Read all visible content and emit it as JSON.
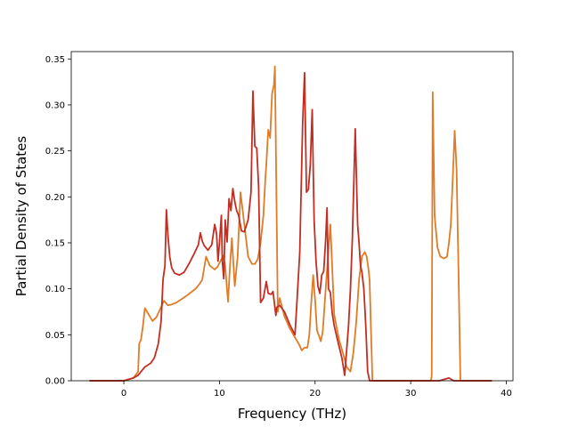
{
  "chart_data": {
    "type": "line",
    "title": "",
    "xlabel": "Frequency (THz)",
    "ylabel": "Partial Density of States",
    "xlim": [
      -5.5,
      40.7
    ],
    "ylim": [
      0.0,
      0.358
    ],
    "xticks": [
      0,
      10,
      20,
      30,
      40
    ],
    "yticks": [
      0.0,
      0.05,
      0.1,
      0.15,
      0.2,
      0.25,
      0.3,
      0.35
    ],
    "xtick_labels": [
      "0",
      "10",
      "20",
      "30",
      "40"
    ],
    "ytick_labels": [
      "0.00",
      "0.05",
      "0.10",
      "0.15",
      "0.20",
      "0.25",
      "0.30",
      "0.35"
    ],
    "grid": false,
    "legend": false,
    "series": [
      {
        "color": "#e07b26",
        "x": [
          -3.6,
          0,
          1.0,
          1.5,
          1.6,
          1.8,
          2.0,
          2.2,
          2.6,
          3.0,
          3.4,
          3.8,
          4.2,
          4.6,
          5.0,
          5.5,
          6.5,
          7.5,
          7.9,
          8.2,
          8.6,
          9.0,
          9.5,
          9.8,
          10.1,
          10.4,
          10.6,
          10.8,
          10.9,
          11.1,
          11.3,
          11.6,
          11.9,
          12.2,
          12.6,
          13.0,
          13.4,
          13.7,
          14.0,
          14.3,
          14.6,
          14.8,
          14.9,
          15.1,
          15.3,
          15.5,
          15.7,
          15.8,
          16.1,
          16.3,
          16.8,
          17.3,
          17.9,
          18.3,
          18.6,
          18.9,
          19.2,
          19.4,
          19.6,
          19.8,
          20.0,
          20.2,
          20.6,
          20.8,
          21.2,
          21.6,
          22.0,
          22.5,
          23.0,
          23.3,
          23.7,
          24.0,
          24.3,
          24.6,
          24.9,
          25.2,
          25.4,
          25.6,
          25.7,
          26.0,
          27.0,
          29.0,
          31.0,
          32.1,
          32.2,
          32.3,
          32.5,
          32.8,
          33.1,
          33.5,
          33.8,
          34.0,
          34.2,
          34.4,
          34.6,
          34.8,
          35.0,
          35.2,
          36.0,
          37.0,
          38.5
        ],
        "y": [
          0.0,
          0.0,
          0.003,
          0.01,
          0.04,
          0.045,
          0.06,
          0.079,
          0.072,
          0.065,
          0.069,
          0.078,
          0.087,
          0.082,
          0.083,
          0.085,
          0.092,
          0.1,
          0.105,
          0.11,
          0.135,
          0.125,
          0.121,
          0.124,
          0.13,
          0.136,
          0.125,
          0.098,
          0.086,
          0.125,
          0.155,
          0.103,
          0.135,
          0.205,
          0.17,
          0.135,
          0.127,
          0.127,
          0.132,
          0.15,
          0.18,
          0.22,
          0.235,
          0.273,
          0.264,
          0.312,
          0.322,
          0.342,
          0.075,
          0.09,
          0.07,
          0.058,
          0.047,
          0.04,
          0.033,
          0.036,
          0.036,
          0.05,
          0.085,
          0.115,
          0.088,
          0.055,
          0.043,
          0.053,
          0.113,
          0.17,
          0.072,
          0.045,
          0.027,
          0.015,
          0.01,
          0.03,
          0.063,
          0.11,
          0.135,
          0.14,
          0.135,
          0.12,
          0.11,
          0.0,
          0.0,
          0.0,
          0.0,
          0.0,
          0.005,
          0.314,
          0.18,
          0.145,
          0.135,
          0.133,
          0.135,
          0.15,
          0.17,
          0.22,
          0.272,
          0.23,
          0.12,
          0.0,
          0.0,
          0.0,
          0.0
        ]
      },
      {
        "color": "#c22e22",
        "x": [
          -3.6,
          0,
          1.0,
          1.5,
          1.8,
          2.2,
          2.8,
          3.2,
          3.6,
          3.9,
          4.1,
          4.3,
          4.45,
          4.6,
          4.8,
          5.0,
          5.3,
          5.8,
          6.3,
          6.8,
          7.3,
          7.8,
          8.0,
          8.2,
          8.4,
          8.8,
          9.2,
          9.5,
          9.7,
          9.85,
          10.0,
          10.2,
          10.3,
          10.45,
          10.6,
          10.8,
          11.0,
          11.2,
          11.4,
          11.6,
          11.8,
          12.0,
          12.3,
          12.6,
          13.0,
          13.3,
          13.5,
          13.7,
          13.9,
          14.1,
          14.3,
          14.6,
          14.9,
          15.1,
          15.4,
          15.6,
          15.9,
          16.0,
          16.3,
          16.8,
          17.4,
          17.9,
          18.1,
          18.4,
          18.7,
          18.9,
          19.1,
          19.3,
          19.5,
          19.7,
          19.9,
          20.1,
          20.3,
          20.5,
          20.7,
          20.9,
          21.1,
          21.25,
          21.4,
          21.6,
          21.8,
          22.0,
          22.4,
          22.8,
          23.1,
          23.5,
          23.7,
          23.9,
          24.2,
          24.45,
          24.6,
          24.75,
          24.9,
          25.1,
          25.3,
          25.5,
          25.7,
          25.8,
          26.0,
          27.0,
          29.0,
          32.0,
          32.3,
          33.0,
          34.0,
          34.5,
          35.0,
          35.2,
          36.0,
          38.5
        ],
        "y": [
          0.0,
          0.0,
          0.003,
          0.006,
          0.01,
          0.015,
          0.019,
          0.025,
          0.04,
          0.065,
          0.11,
          0.125,
          0.186,
          0.16,
          0.135,
          0.123,
          0.117,
          0.115,
          0.118,
          0.127,
          0.137,
          0.148,
          0.161,
          0.152,
          0.147,
          0.142,
          0.148,
          0.17,
          0.16,
          0.13,
          0.15,
          0.18,
          0.13,
          0.111,
          0.175,
          0.151,
          0.198,
          0.185,
          0.209,
          0.195,
          0.185,
          0.18,
          0.163,
          0.162,
          0.175,
          0.205,
          0.315,
          0.255,
          0.253,
          0.21,
          0.085,
          0.09,
          0.108,
          0.095,
          0.094,
          0.097,
          0.071,
          0.08,
          0.082,
          0.075,
          0.06,
          0.05,
          0.085,
          0.14,
          0.28,
          0.335,
          0.205,
          0.208,
          0.235,
          0.295,
          0.175,
          0.13,
          0.103,
          0.095,
          0.115,
          0.119,
          0.152,
          0.188,
          0.1,
          0.096,
          0.073,
          0.06,
          0.042,
          0.025,
          0.006,
          0.06,
          0.1,
          0.155,
          0.274,
          0.17,
          0.15,
          0.125,
          0.118,
          0.1,
          0.06,
          0.01,
          0.0,
          0.0,
          0.0,
          0.0,
          0.0,
          0.0,
          0.0,
          0.0,
          0.003,
          0.0,
          0.0,
          0.0,
          0.0,
          0.0
        ]
      }
    ]
  }
}
